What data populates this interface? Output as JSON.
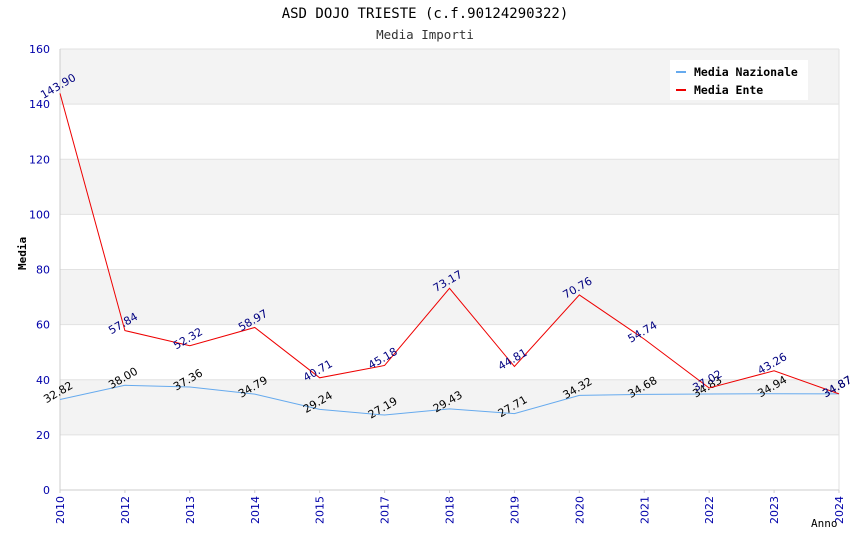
{
  "title": "ASD DOJO TRIESTE (c.f.90124290322)",
  "subtitle": "Media Importi",
  "chart_data": {
    "type": "line",
    "title": "ASD DOJO TRIESTE (c.f.90124290322)",
    "subtitle": "Media Importi",
    "xlabel": "Anno",
    "ylabel": "Media",
    "ylim": [
      0,
      160
    ],
    "yticks": [
      "0",
      "20",
      "40",
      "60",
      "80",
      "100",
      "120",
      "140",
      "160"
    ],
    "categories": [
      "2010",
      "2012",
      "2013",
      "2014",
      "2015",
      "2017",
      "2018",
      "2019",
      "2020",
      "2021",
      "2022",
      "2023",
      "2024"
    ],
    "grid": true,
    "legend_position": "top-right",
    "series": [
      {
        "name": "Media Nazionale",
        "color": "#66aaee",
        "label_color": "#000000",
        "values": [
          32.82,
          38.0,
          37.36,
          34.79,
          29.24,
          27.19,
          29.43,
          27.71,
          34.32,
          34.68,
          34.83,
          34.94,
          34.87
        ],
        "labels": [
          "32.82",
          "38.00",
          "37.36",
          "34.79",
          "29.24",
          "27.19",
          "29.43",
          "27.71",
          "34.32",
          "34.68",
          "34.83",
          "34.94",
          "34.87"
        ]
      },
      {
        "name": "Media Ente",
        "color": "#ee0000",
        "label_color": "#000080",
        "values": [
          143.9,
          57.84,
          52.32,
          58.97,
          40.71,
          45.18,
          73.17,
          44.81,
          70.76,
          54.74,
          37.02,
          43.26,
          34.87
        ],
        "labels": [
          "143.90",
          "57.84",
          "52.32",
          "58.97",
          "40.71",
          "45.18",
          "73.17",
          "44.81",
          "70.76",
          "54.74",
          "37.02",
          "43.26",
          "34.87"
        ]
      }
    ]
  }
}
